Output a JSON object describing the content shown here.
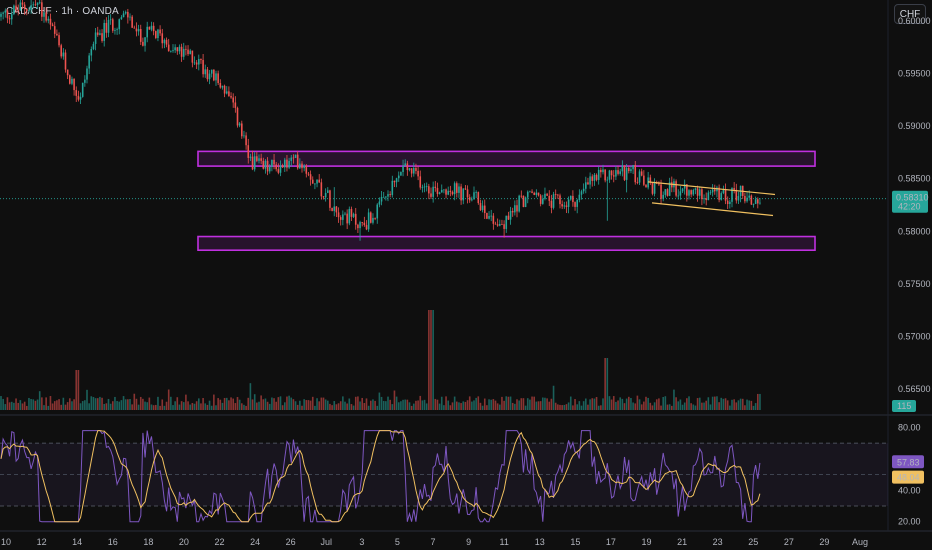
{
  "header": {
    "symbol": "CAD/CHF · 1h · OANDA",
    "currency_button": "CHF"
  },
  "colors": {
    "background": "#0f0f0f",
    "up": "#26a69a",
    "down": "#ef5350",
    "zone": "#c030e0",
    "wedge": "#f0c060",
    "rsi": "#7e57c2",
    "rsi_ma": "#f0c060",
    "price_line": "#26a69a"
  },
  "chart_data": [
    {
      "type": "candlestick",
      "title": "CAD/CHF · 1h · OANDA",
      "y_ticks": [
        "0.60000",
        "0.59500",
        "0.59000",
        "0.58500",
        "0.58000",
        "0.57500",
        "0.57000",
        "0.56500"
      ],
      "ylim": [
        0.563,
        0.602
      ],
      "x_ticks": [
        "10",
        "12",
        "14",
        "16",
        "18",
        "20",
        "22",
        "24",
        "26",
        "Jul",
        "3",
        "5",
        "7",
        "9",
        "11",
        "13",
        "15",
        "17",
        "19",
        "21",
        "23",
        "25",
        "27",
        "29",
        "Aug"
      ],
      "last_price": "0.58310",
      "countdown": "42:20",
      "volume_label": "115",
      "path_points": [
        [
          0,
          0.6004
        ],
        [
          20,
          0.6012
        ],
        [
          38,
          0.6016
        ],
        [
          55,
          0.5985
        ],
        [
          68,
          0.595
        ],
        [
          80,
          0.5925
        ],
        [
          92,
          0.5978
        ],
        [
          108,
          0.5995
        ],
        [
          128,
          0.6005
        ],
        [
          140,
          0.5982
        ],
        [
          152,
          0.599
        ],
        [
          165,
          0.5982
        ],
        [
          178,
          0.597
        ],
        [
          195,
          0.5965
        ],
        [
          210,
          0.595
        ],
        [
          225,
          0.5935
        ],
        [
          238,
          0.5905
        ],
        [
          248,
          0.587
        ],
        [
          262,
          0.586
        ],
        [
          280,
          0.5862
        ],
        [
          300,
          0.5868
        ],
        [
          318,
          0.5845
        ],
        [
          338,
          0.582
        ],
        [
          352,
          0.5812
        ],
        [
          362,
          0.5805
        ],
        [
          378,
          0.582
        ],
        [
          392,
          0.584
        ],
        [
          404,
          0.5862
        ],
        [
          418,
          0.585
        ],
        [
          432,
          0.584
        ],
        [
          448,
          0.5842
        ],
        [
          462,
          0.5835
        ],
        [
          478,
          0.583
        ],
        [
          492,
          0.5812
        ],
        [
          504,
          0.5805
        ],
        [
          518,
          0.5828
        ],
        [
          534,
          0.5835
        ],
        [
          550,
          0.5828
        ],
        [
          565,
          0.5826
        ],
        [
          580,
          0.5832
        ],
        [
          590,
          0.5848
        ],
        [
          604,
          0.5852
        ],
        [
          616,
          0.5855
        ],
        [
          630,
          0.5858
        ],
        [
          645,
          0.5845
        ],
        [
          660,
          0.5838
        ],
        [
          676,
          0.584
        ],
        [
          692,
          0.5835
        ],
        [
          708,
          0.5838
        ],
        [
          724,
          0.5832
        ],
        [
          740,
          0.5838
        ],
        [
          752,
          0.5828
        ],
        [
          762,
          0.5831
        ]
      ],
      "spikes": [
        [
          334,
          0.5823,
          0.5842
        ],
        [
          358,
          0.5791,
          0.5808
        ],
        [
          402,
          0.5853,
          0.5868
        ],
        [
          503,
          0.5794,
          0.5808
        ],
        [
          606,
          0.581,
          0.5852
        ],
        [
          626,
          0.5837,
          0.5864
        ]
      ],
      "support_resistance_zones": [
        [
          0.5876,
          0.5862
        ],
        [
          0.5795,
          0.5782
        ]
      ],
      "wedge": {
        "upper": [
          [
            648,
            0.5847
          ],
          [
            775,
            0.5835
          ]
        ],
        "lower": [
          [
            652,
            0.5827
          ],
          [
            773,
            0.5815
          ]
        ]
      }
    },
    {
      "type": "line",
      "name": "RSI",
      "y_ticks": [
        "80.00",
        "60.00",
        "40.00",
        "20.00"
      ],
      "ylim": [
        16,
        86
      ],
      "levels": [
        70,
        50,
        30
      ],
      "rsi_value": "57.83",
      "rsi_ma_value": "48.04"
    }
  ]
}
